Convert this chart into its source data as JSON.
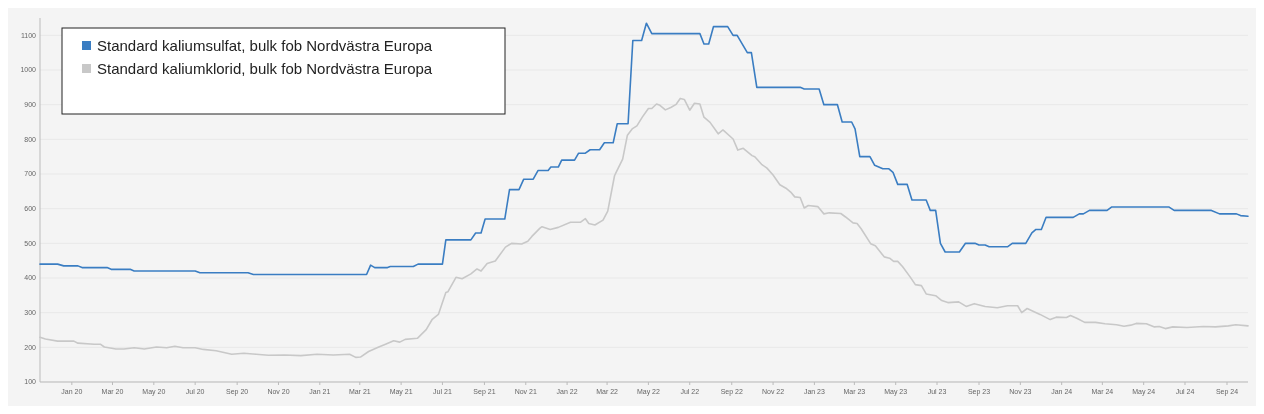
{
  "chart_data": {
    "type": "line",
    "legend": "top left",
    "grid": "y",
    "marker": "none",
    "line_style": "solid",
    "xlim": [
      "2019-11-15",
      "2024-10-02"
    ],
    "ylim": [
      100,
      1150
    ],
    "yticks": [
      100,
      200,
      300,
      400,
      500,
      600,
      700,
      800,
      900,
      1000,
      1100
    ],
    "xticks": [
      {
        "value": "2020-01-01",
        "label": "Jan 20"
      },
      {
        "value": "2020-03-01",
        "label": "Mar 20"
      },
      {
        "value": "2020-05-01",
        "label": "May 20"
      },
      {
        "value": "2020-07-01",
        "label": "Jul 20"
      },
      {
        "value": "2020-09-01",
        "label": "Sep 20"
      },
      {
        "value": "2020-11-01",
        "label": "Nov 20"
      },
      {
        "value": "2021-01-01",
        "label": "Jan 21"
      },
      {
        "value": "2021-03-01",
        "label": "Mar 21"
      },
      {
        "value": "2021-05-01",
        "label": "May 21"
      },
      {
        "value": "2021-07-01",
        "label": "Jul 21"
      },
      {
        "value": "2021-09-01",
        "label": "Sep 21"
      },
      {
        "value": "2021-11-01",
        "label": "Nov 21"
      },
      {
        "value": "2022-01-01",
        "label": "Jan 22"
      },
      {
        "value": "2022-03-01",
        "label": "Mar 22"
      },
      {
        "value": "2022-05-01",
        "label": "May 22"
      },
      {
        "value": "2022-07-01",
        "label": "Jul 22"
      },
      {
        "value": "2022-09-01",
        "label": "Sep 22"
      },
      {
        "value": "2022-11-01",
        "label": "Nov 22"
      },
      {
        "value": "2023-01-01",
        "label": "Jan 23"
      },
      {
        "value": "2023-03-01",
        "label": "Mar 23"
      },
      {
        "value": "2023-05-01",
        "label": "May 23"
      },
      {
        "value": "2023-07-01",
        "label": "Jul 23"
      },
      {
        "value": "2023-09-01",
        "label": "Sep 23"
      },
      {
        "value": "2023-11-01",
        "label": "Nov 23"
      },
      {
        "value": "2024-01-01",
        "label": "Jan 24"
      },
      {
        "value": "2024-03-01",
        "label": "Mar 24"
      },
      {
        "value": "2024-05-01",
        "label": "May 24"
      },
      {
        "value": "2024-07-01",
        "label": "Jul 24"
      },
      {
        "value": "2024-09-01",
        "label": "Sep 24"
      }
    ],
    "series": [
      {
        "name": "Standard kaliumsulfat, bulk fob Nordvästra Europa",
        "color": "#3a7dc2",
        "x": [
          "2019-11-15",
          "2019-12-11",
          "2019-12-20",
          "2020-01-10",
          "2020-01-16",
          "2020-02-22",
          "2020-02-28",
          "2020-03-27",
          "2020-04-02",
          "2020-07-01",
          "2020-07-08",
          "2020-09-17",
          "2020-09-25",
          "2021-03-11",
          "2021-03-17",
          "2021-03-23",
          "2021-04-11",
          "2021-04-15",
          "2021-05-19",
          "2021-05-26",
          "2021-07-01",
          "2021-07-06",
          "2021-08-12",
          "2021-08-19",
          "2021-08-27",
          "2021-09-02",
          "2021-10-01",
          "2021-10-08",
          "2021-10-22",
          "2021-10-29",
          "2021-11-12",
          "2021-11-19",
          "2021-12-04",
          "2021-12-08",
          "2021-12-19",
          "2021-12-24",
          "2022-01-12",
          "2022-01-18",
          "2022-01-28",
          "2022-02-04",
          "2022-02-18",
          "2022-02-25",
          "2022-03-10",
          "2022-03-16",
          "2022-04-01",
          "2022-04-08",
          "2022-04-21",
          "2022-04-28",
          "2022-05-06",
          "2022-07-16",
          "2022-07-22",
          "2022-07-29",
          "2022-08-05",
          "2022-08-26",
          "2022-09-03",
          "2022-09-09",
          "2022-09-24",
          "2022-09-30",
          "2022-10-08",
          "2022-12-11",
          "2022-12-17",
          "2023-01-08",
          "2023-01-15",
          "2023-02-04",
          "2023-02-11",
          "2023-02-25",
          "2023-03-02",
          "2023-03-09",
          "2023-03-24",
          "2023-03-31",
          "2023-04-12",
          "2023-04-21",
          "2023-04-27",
          "2023-05-04",
          "2023-05-18",
          "2023-05-25",
          "2023-06-15",
          "2023-06-21",
          "2023-06-29",
          "2023-07-06",
          "2023-07-13",
          "2023-08-03",
          "2023-08-12",
          "2023-08-26",
          "2023-09-01",
          "2023-09-10",
          "2023-09-16",
          "2023-10-13",
          "2023-10-20",
          "2023-11-09",
          "2023-11-18",
          "2023-11-24",
          "2023-12-02",
          "2023-12-09",
          "2024-01-18",
          "2024-01-27",
          "2024-02-02",
          "2024-02-11",
          "2024-03-08",
          "2024-03-15",
          "2024-06-07",
          "2024-06-15",
          "2024-08-09",
          "2024-08-21",
          "2024-09-15",
          "2024-09-21",
          "2024-10-02"
        ],
        "values": [
          440,
          440,
          435,
          435,
          430,
          430,
          425,
          425,
          420,
          420,
          415,
          415,
          410,
          410,
          437,
          430,
          430,
          433,
          433,
          440,
          440,
          510,
          510,
          530,
          530,
          570,
          570,
          655,
          655,
          685,
          685,
          710,
          710,
          720,
          720,
          740,
          740,
          760,
          760,
          770,
          770,
          790,
          790,
          845,
          845,
          1085,
          1085,
          1135,
          1105,
          1105,
          1075,
          1075,
          1125,
          1125,
          1100,
          1100,
          1050,
          1050,
          950,
          950,
          945,
          945,
          900,
          900,
          850,
          850,
          830,
          750,
          750,
          725,
          715,
          715,
          705,
          670,
          670,
          625,
          625,
          595,
          595,
          500,
          475,
          475,
          500,
          500,
          495,
          495,
          490,
          490,
          500,
          500,
          530,
          540,
          540,
          575,
          575,
          585,
          585,
          595,
          595,
          605,
          605,
          595,
          595,
          585,
          585,
          580,
          578
        ]
      },
      {
        "name": "Standard kaliumklorid, bulk fob Nordvästra Europa",
        "color": "#c8c8c8",
        "x": [
          "2019-11-15",
          "2019-11-23",
          "2019-12-11",
          "2020-01-04",
          "2020-01-10",
          "2020-02-03",
          "2020-02-12",
          "2020-02-18",
          "2020-03-06",
          "2020-03-18",
          "2020-04-02",
          "2020-04-17",
          "2020-05-05",
          "2020-05-20",
          "2020-06-01",
          "2020-06-13",
          "2020-07-01",
          "2020-07-13",
          "2020-08-01",
          "2020-08-24",
          "2020-09-11",
          "2020-09-29",
          "2020-10-17",
          "2020-11-10",
          "2020-12-04",
          "2020-12-28",
          "2021-01-21",
          "2021-02-14",
          "2021-02-23",
          "2021-03-02",
          "2021-03-14",
          "2021-03-29",
          "2021-04-08",
          "2021-04-20",
          "2021-04-29",
          "2021-05-07",
          "2021-05-25",
          "2021-06-07",
          "2021-06-16",
          "2021-06-25",
          "2021-07-06",
          "2021-07-09",
          "2021-07-21",
          "2021-07-30",
          "2021-08-12",
          "2021-08-21",
          "2021-08-27",
          "2021-09-05",
          "2021-09-17",
          "2021-10-02",
          "2021-10-11",
          "2021-10-26",
          "2021-11-04",
          "2021-11-10",
          "2021-11-22",
          "2021-11-25",
          "2021-12-07",
          "2021-12-19",
          "2022-01-06",
          "2022-01-21",
          "2022-01-28",
          "2022-02-02",
          "2022-02-11",
          "2022-02-23",
          "2022-03-02",
          "2022-03-12",
          "2022-03-14",
          "2022-03-24",
          "2022-03-31",
          "2022-04-07",
          "2022-04-14",
          "2022-04-22",
          "2022-05-01",
          "2022-05-06",
          "2022-05-13",
          "2022-05-18",
          "2022-05-26",
          "2022-06-03",
          "2022-06-11",
          "2022-06-17",
          "2022-06-23",
          "2022-07-01",
          "2022-07-08",
          "2022-07-16",
          "2022-07-22",
          "2022-07-31",
          "2022-08-12",
          "2022-08-19",
          "2022-09-03",
          "2022-09-10",
          "2022-09-18",
          "2022-10-01",
          "2022-10-05",
          "2022-10-15",
          "2022-10-23",
          "2022-11-01",
          "2022-11-11",
          "2022-11-20",
          "2022-11-27",
          "2022-12-03",
          "2022-12-11",
          "2022-12-17",
          "2022-12-23",
          "2023-01-06",
          "2023-01-15",
          "2023-01-23",
          "2023-02-09",
          "2023-02-16",
          "2023-02-27",
          "2023-03-05",
          "2023-03-11",
          "2023-03-25",
          "2023-04-01",
          "2023-04-14",
          "2023-04-22",
          "2023-04-28",
          "2023-05-04",
          "2023-05-11",
          "2023-05-22",
          "2023-05-30",
          "2023-06-08",
          "2023-06-15",
          "2023-06-29",
          "2023-07-08",
          "2023-07-17",
          "2023-08-02",
          "2023-08-13",
          "2023-08-25",
          "2023-09-10",
          "2023-09-28",
          "2023-10-13",
          "2023-10-28",
          "2023-11-03",
          "2023-11-11",
          "2023-11-30",
          "2023-12-15",
          "2023-12-24",
          "2024-01-08",
          "2024-01-14",
          "2024-01-24",
          "2024-02-04",
          "2024-02-20",
          "2024-03-05",
          "2024-03-22",
          "2024-04-02",
          "2024-04-12",
          "2024-04-20",
          "2024-05-05",
          "2024-05-17",
          "2024-05-24",
          "2024-06-02",
          "2024-06-13",
          "2024-07-04",
          "2024-07-28",
          "2024-08-15",
          "2024-09-03",
          "2024-09-14",
          "2024-10-02"
        ],
        "values": [
          229,
          224,
          218,
          218,
          212,
          209,
          209,
          201,
          195,
          195,
          199,
          195,
          201,
          199,
          203,
          199,
          199,
          194,
          190,
          180,
          183,
          180,
          177,
          178,
          176,
          180,
          178,
          180,
          171,
          172,
          188,
          201,
          209,
          219,
          215,
          223,
          226,
          251,
          281,
          295,
          358,
          360,
          402,
          398,
          412,
          426,
          420,
          442,
          449,
          489,
          500,
          498,
          506,
          520,
          544,
          548,
          540,
          546,
          561,
          561,
          571,
          557,
          553,
          567,
          593,
          695,
          703,
          743,
          812,
          830,
          839,
          864,
          889,
          889,
          902,
          898,
          885,
          892,
          901,
          918,
          915,
          884,
          904,
          902,
          864,
          849,
          816,
          827,
          801,
          769,
          774,
          753,
          750,
          728,
          717,
          697,
          669,
          659,
          648,
          634,
          632,
          602,
          609,
          606,
          585,
          588,
          586,
          576,
          559,
          557,
          542,
          499,
          493,
          461,
          457,
          448,
          448,
          433,
          404,
          381,
          378,
          354,
          349,
          335,
          329,
          331,
          318,
          326,
          318,
          314,
          320,
          320,
          300,
          312,
          295,
          280,
          287,
          286,
          292,
          283,
          272,
          272,
          268,
          265,
          261,
          264,
          269,
          268,
          259,
          260,
          254,
          259,
          257,
          260,
          259,
          262,
          265,
          262
        ]
      }
    ]
  }
}
